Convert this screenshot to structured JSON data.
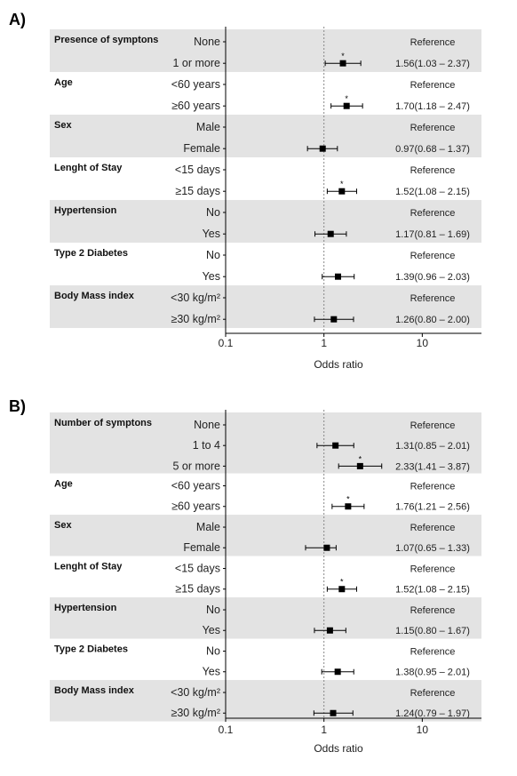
{
  "chart_data": [
    {
      "type": "forest",
      "panel_label": "A)",
      "xlabel": "Odds ratio",
      "xscale": "log",
      "xlim": [
        0.1,
        40
      ],
      "ticks": [
        0.1,
        1,
        10
      ],
      "tick_labels": [
        "0.1",
        "1",
        "10"
      ],
      "reference_line": 1,
      "groups": [
        {
          "name": "Presence of symptons",
          "shaded": true,
          "rows": [
            {
              "label": "None",
              "text": "Reference"
            },
            {
              "label": "1 or more",
              "or": 1.56,
              "lo": 1.03,
              "hi": 2.37,
              "text": "1.56(1.03 – 2.37)",
              "sig": true
            }
          ]
        },
        {
          "name": "Age",
          "shaded": false,
          "rows": [
            {
              "label": "<60 years",
              "text": "Reference"
            },
            {
              "label": "≥60 years",
              "or": 1.7,
              "lo": 1.18,
              "hi": 2.47,
              "text": "1.70(1.18 – 2.47)",
              "sig": true
            }
          ]
        },
        {
          "name": "Sex",
          "shaded": true,
          "rows": [
            {
              "label": "Male",
              "text": "Reference"
            },
            {
              "label": "Female",
              "or": 0.97,
              "lo": 0.68,
              "hi": 1.37,
              "text": "0.97(0.68 – 1.37)",
              "sig": false
            }
          ]
        },
        {
          "name": "Lenght of Stay",
          "shaded": false,
          "rows": [
            {
              "label": "<15 days",
              "text": "Reference"
            },
            {
              "label": "≥15 days",
              "or": 1.52,
              "lo": 1.08,
              "hi": 2.15,
              "text": "1.52(1.08 – 2.15)",
              "sig": true
            }
          ]
        },
        {
          "name": "Hypertension",
          "shaded": true,
          "rows": [
            {
              "label": "No",
              "text": "Reference"
            },
            {
              "label": "Yes",
              "or": 1.17,
              "lo": 0.81,
              "hi": 1.69,
              "text": "1.17(0.81 – 1.69)",
              "sig": false
            }
          ]
        },
        {
          "name": "Type 2 Diabetes",
          "shaded": false,
          "rows": [
            {
              "label": "No",
              "text": "Reference"
            },
            {
              "label": "Yes",
              "or": 1.39,
              "lo": 0.96,
              "hi": 2.03,
              "text": "1.39(0.96 – 2.03)",
              "sig": false
            }
          ]
        },
        {
          "name": "Body Mass index",
          "shaded": true,
          "rows": [
            {
              "label": "<30 kg/m²",
              "text": "Reference"
            },
            {
              "label": "≥30 kg/m²",
              "or": 1.26,
              "lo": 0.8,
              "hi": 2.0,
              "text": "1.26(0.80 – 2.00)",
              "sig": false
            }
          ]
        }
      ]
    },
    {
      "type": "forest",
      "panel_label": "B)",
      "xlabel": "Odds ratio",
      "xscale": "log",
      "xlim": [
        0.1,
        40
      ],
      "ticks": [
        0.1,
        1,
        10
      ],
      "tick_labels": [
        "0.1",
        "1",
        "10"
      ],
      "reference_line": 1,
      "groups": [
        {
          "name": "Number of symptons",
          "shaded": true,
          "rows": [
            {
              "label": "None",
              "text": "Reference"
            },
            {
              "label": "1 to 4",
              "or": 1.31,
              "lo": 0.85,
              "hi": 2.01,
              "text": "1.31(0.85 – 2.01)",
              "sig": false
            },
            {
              "label": "5 or more",
              "or": 2.33,
              "lo": 1.41,
              "hi": 3.87,
              "text": "2.33(1.41 – 3.87)",
              "sig": true
            }
          ]
        },
        {
          "name": "Age",
          "shaded": false,
          "rows": [
            {
              "label": "<60 years",
              "text": "Reference"
            },
            {
              "label": "≥60 years",
              "or": 1.76,
              "lo": 1.21,
              "hi": 2.56,
              "text": "1.76(1.21 – 2.56)",
              "sig": true
            }
          ]
        },
        {
          "name": "Sex",
          "shaded": true,
          "rows": [
            {
              "label": "Male",
              "text": "Reference"
            },
            {
              "label": "Female",
              "or": 1.07,
              "lo": 0.65,
              "hi": 1.33,
              "text": "1.07(0.65 – 1.33)",
              "sig": false
            }
          ]
        },
        {
          "name": "Lenght of Stay",
          "shaded": false,
          "rows": [
            {
              "label": "<15 days",
              "text": "Reference"
            },
            {
              "label": "≥15 days",
              "or": 1.52,
              "lo": 1.08,
              "hi": 2.15,
              "text": "1.52(1.08 – 2.15)",
              "sig": true
            }
          ]
        },
        {
          "name": "Hypertension",
          "shaded": true,
          "rows": [
            {
              "label": "No",
              "text": "Reference"
            },
            {
              "label": "Yes",
              "or": 1.15,
              "lo": 0.8,
              "hi": 1.67,
              "text": "1.15(0.80 – 1.67)",
              "sig": false
            }
          ]
        },
        {
          "name": "Type 2 Diabetes",
          "shaded": false,
          "rows": [
            {
              "label": "No",
              "text": "Reference"
            },
            {
              "label": "Yes",
              "or": 1.38,
              "lo": 0.95,
              "hi": 2.01,
              "text": "1.38(0.95 – 2.01)",
              "sig": false
            }
          ]
        },
        {
          "name": "Body Mass index",
          "shaded": true,
          "rows": [
            {
              "label": "<30 kg/m²",
              "text": "Reference"
            },
            {
              "label": "≥30 kg/m²",
              "or": 1.24,
              "lo": 0.79,
              "hi": 1.97,
              "text": "1.24(0.79 – 1.97)",
              "sig": false
            }
          ]
        }
      ]
    }
  ],
  "significance_marker": "*",
  "colors": {
    "band": "#e3e3e3",
    "mark": "#000000",
    "ref_line": "#888888"
  }
}
